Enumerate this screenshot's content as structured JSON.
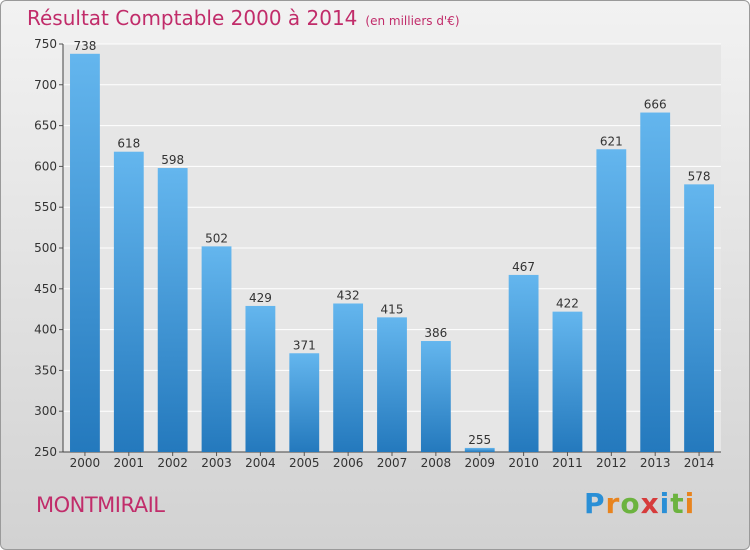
{
  "title": "Résultat Comptable 2000 à 2014",
  "subtitle": "(en milliers d'€)",
  "commune": "MONTMIRAIL",
  "brand": "Proxiti",
  "colors": {
    "title": "#c12c6a",
    "bar_top": "#64b6ee",
    "bar_bottom": "#2479bd",
    "plot_bg": "#e6e6e6",
    "grid": "#ffffff"
  },
  "chart_data": {
    "type": "bar",
    "title": "Résultat Comptable 2000 à 2014",
    "subtitle": "(en milliers d'€)",
    "xlabel": "",
    "ylabel": "",
    "categories": [
      "2000",
      "2001",
      "2002",
      "2003",
      "2004",
      "2005",
      "2006",
      "2007",
      "2008",
      "2009",
      "2010",
      "2011",
      "2012",
      "2013",
      "2014"
    ],
    "values": [
      738,
      618,
      598,
      502,
      429,
      371,
      432,
      415,
      386,
      255,
      467,
      422,
      621,
      666,
      578
    ],
    "ylim": [
      250,
      750
    ],
    "yticks": [
      250,
      300,
      350,
      400,
      450,
      500,
      550,
      600,
      650,
      700,
      750
    ],
    "grid": true,
    "legend": "none"
  }
}
